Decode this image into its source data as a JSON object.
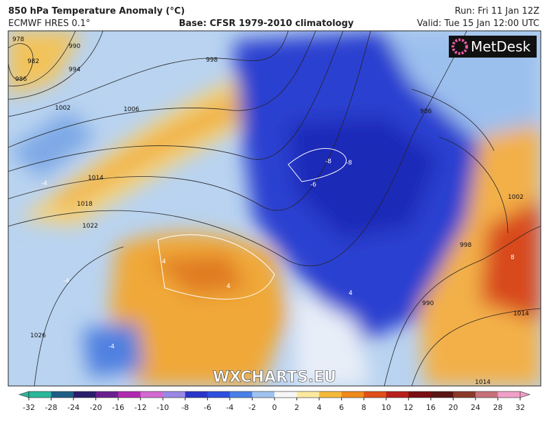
{
  "header": {
    "title": "850 hPa Temperature Anomaly (°C)",
    "model": "ECMWF HRES 0.1°",
    "base": "Base: CFSR 1979-2010 climatology",
    "run": "Run: Fri 11 Jan 12Z",
    "valid": "Valid: Tue 15 Jan 12:00 UTC"
  },
  "logo": "MetDesk",
  "watermark": "WXCHARTS.EU",
  "isobar_labels": [
    "978",
    "982",
    "986",
    "990",
    "994",
    "998",
    "1002",
    "1006",
    "1014",
    "1018",
    "1022",
    "1026",
    "986",
    "1002",
    "998",
    "990",
    "1014",
    "1014"
  ],
  "anomaly_labels": [
    "-8",
    "-8",
    "-6",
    "-4",
    "-4",
    "4",
    "4",
    "8",
    "-4",
    "4"
  ],
  "colorbar": {
    "ticks": [
      -32,
      -28,
      -24,
      -20,
      -16,
      -12,
      -10,
      -8,
      -6,
      -4,
      -2,
      0,
      2,
      4,
      6,
      8,
      10,
      12,
      16,
      20,
      24,
      28,
      32
    ],
    "colors": [
      "#2bb79a",
      "#1f5f86",
      "#2a1f6b",
      "#6a1f8f",
      "#b12ab0",
      "#d26ad0",
      "#9a88e6",
      "#2b36c9",
      "#2f4fe0",
      "#4b7fe8",
      "#9fc2f0",
      "#f6f6f6",
      "#fce9a0",
      "#f5b93a",
      "#ef8a1c",
      "#e0501a",
      "#b8201c",
      "#7a0e12",
      "#5a1414",
      "#8a3a2a",
      "#c8707a",
      "#f0a0c8"
    ]
  }
}
